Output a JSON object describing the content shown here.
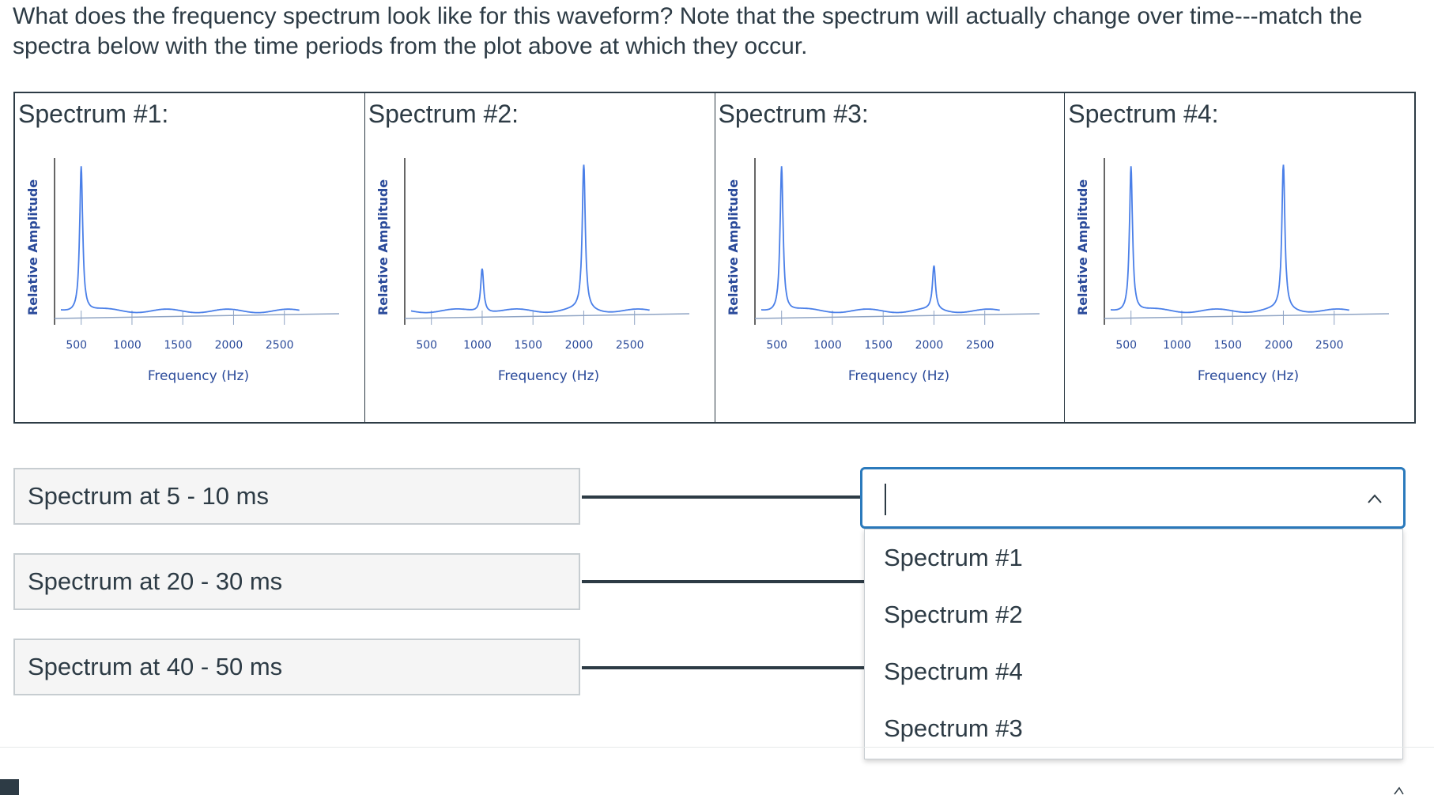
{
  "question": "What does the frequency spectrum look like for this waveform? Note that the spectrum will actually change over time---match the spectra below with the time periods from the plot above at which they occur.",
  "spectra": [
    {
      "title": "Spectrum #1:",
      "xlabel": "Frequency (Hz)",
      "ylabel": "Relative Amplitude",
      "ticks": [
        "500",
        "1000",
        "1500",
        "2000",
        "2500"
      ]
    },
    {
      "title": "Spectrum #2:",
      "xlabel": "Frequency (Hz)",
      "ylabel": "Relative Amplitude",
      "ticks": [
        "500",
        "1000",
        "1500",
        "2000",
        "2500"
      ]
    },
    {
      "title": "Spectrum #3:",
      "xlabel": "Frequency (Hz)",
      "ylabel": "Relative Amplitude",
      "ticks": [
        "500",
        "1000",
        "1500",
        "2000",
        "2500"
      ]
    },
    {
      "title": "Spectrum #4:",
      "xlabel": "Frequency (Hz)",
      "ylabel": "Relative Amplitude",
      "ticks": [
        "500",
        "1000",
        "1500",
        "2000",
        "2500"
      ]
    }
  ],
  "chart_data": [
    {
      "type": "line",
      "title": "Spectrum #1:",
      "xlabel": "Frequency (Hz)",
      "ylabel": "Relative Amplitude",
      "peaks": [
        {
          "x": 500,
          "y": 1.0
        }
      ],
      "line_color": "#4a7fe8"
    },
    {
      "type": "line",
      "title": "Spectrum #2:",
      "xlabel": "Frequency (Hz)",
      "ylabel": "Relative Amplitude",
      "peaks": [
        {
          "x": 1000,
          "y": 0.3
        },
        {
          "x": 2000,
          "y": 1.0
        }
      ],
      "line_color": "#4a7fe8"
    },
    {
      "type": "line",
      "title": "Spectrum #3:",
      "xlabel": "Frequency (Hz)",
      "ylabel": "Relative Amplitude",
      "peaks": [
        {
          "x": 500,
          "y": 1.0
        },
        {
          "x": 2000,
          "y": 0.3
        }
      ],
      "line_color": "#4a7fe8"
    },
    {
      "type": "line",
      "title": "Spectrum #4:",
      "xlabel": "Frequency (Hz)",
      "ylabel": "Relative Amplitude",
      "peaks": [
        {
          "x": 500,
          "y": 1.0
        },
        {
          "x": 2000,
          "y": 1.0
        }
      ],
      "line_color": "#4a7fe8"
    }
  ],
  "prompts": [
    {
      "label": "Spectrum at 5 - 10 ms"
    },
    {
      "label": "Spectrum at 20 - 30 ms"
    },
    {
      "label": "Spectrum at 40 - 50 ms"
    }
  ],
  "select": {
    "value": "",
    "expanded": true
  },
  "dropdown_options": [
    "Spectrum #1",
    "Spectrum #2",
    "Spectrum #4",
    "Spectrum #3"
  ],
  "colors": {
    "accent": "#2b7abc",
    "text": "#2d3b45",
    "plot_line": "#4a7fe8",
    "axis_text": "#2a4a9a"
  }
}
